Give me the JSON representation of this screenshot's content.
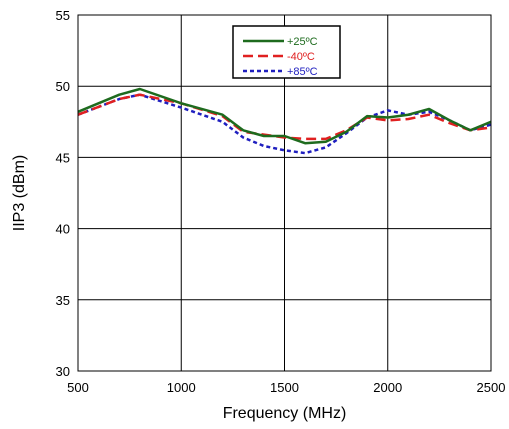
{
  "chart_data": {
    "type": "line",
    "xlabel": "Frequency (MHz)",
    "ylabel": "IIP3 (dBm)",
    "xlim": [
      500,
      2500
    ],
    "ylim": [
      30,
      55
    ],
    "xticks": [
      500,
      1000,
      1500,
      2000,
      2500
    ],
    "yticks": [
      30,
      35,
      40,
      45,
      50,
      55
    ],
    "xtick_labels": [
      "500",
      "1000",
      "1500",
      "2000",
      "2500"
    ],
    "ytick_labels": [
      "30",
      "35",
      "40",
      "45",
      "50",
      "55"
    ],
    "grid": true,
    "legend_position": "top-center",
    "series": [
      {
        "name": "+25ºC",
        "color": "#1e6b1e",
        "dash": "solid",
        "x": [
          500,
          700,
          800,
          1000,
          1200,
          1300,
          1400,
          1500,
          1600,
          1700,
          1800,
          1900,
          2000,
          2100,
          2200,
          2300,
          2400,
          2500
        ],
        "y": [
          48.2,
          49.4,
          49.8,
          48.8,
          48.0,
          46.9,
          46.5,
          46.5,
          46.0,
          46.1,
          46.8,
          47.9,
          47.8,
          48.0,
          48.4,
          47.6,
          46.9,
          47.5
        ]
      },
      {
        "name": "-40ºC",
        "color": "#e02020",
        "dash": "dashed",
        "x": [
          500,
          700,
          800,
          1000,
          1200,
          1300,
          1400,
          1500,
          1600,
          1700,
          1800,
          1900,
          2000,
          2100,
          2200,
          2300,
          2400,
          2500
        ],
        "y": [
          48.0,
          49.1,
          49.4,
          48.8,
          47.9,
          46.8,
          46.6,
          46.4,
          46.3,
          46.3,
          46.9,
          47.8,
          47.6,
          47.7,
          48.0,
          47.4,
          46.9,
          47.1
        ]
      },
      {
        "name": "+85ºC",
        "color": "#1f1fbf",
        "dash": "dotted",
        "x": [
          500,
          700,
          800,
          1000,
          1200,
          1300,
          1400,
          1500,
          1600,
          1700,
          1800,
          1900,
          2000,
          2100,
          2200,
          2300,
          2400,
          2500
        ],
        "y": [
          48.0,
          49.1,
          49.4,
          48.5,
          47.5,
          46.4,
          45.8,
          45.5,
          45.3,
          45.7,
          46.7,
          47.8,
          48.3,
          48.0,
          48.2,
          47.6,
          46.9,
          47.3
        ]
      }
    ]
  }
}
